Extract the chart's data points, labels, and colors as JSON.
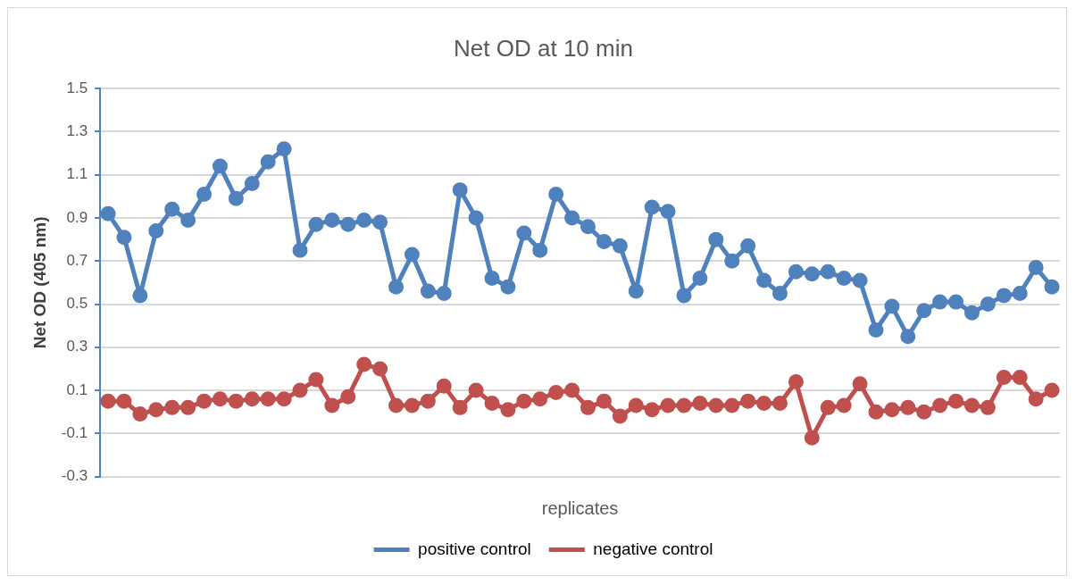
{
  "chart_data": {
    "type": "line",
    "title": "Net OD at 10 min",
    "xlabel": "replicates",
    "ylabel": "Net OD (405 nm)",
    "categories": [
      null,
      null,
      null,
      null,
      null,
      null,
      null,
      null,
      null,
      null,
      null,
      null,
      null,
      null,
      null,
      null,
      null,
      null,
      null,
      null,
      null,
      null,
      null,
      null,
      null,
      null,
      null,
      null,
      null,
      null,
      null,
      null,
      null,
      null,
      null,
      null,
      null,
      null,
      null,
      null,
      null,
      null,
      null,
      null,
      null,
      null,
      null,
      null,
      null,
      null,
      null,
      null,
      null,
      null,
      null,
      null,
      null,
      null,
      null,
      null
    ],
    "series": [
      {
        "name": "positive control",
        "color": "#4f81bd",
        "values": [
          0.92,
          0.81,
          0.54,
          0.84,
          0.94,
          0.89,
          1.01,
          1.14,
          0.99,
          1.06,
          1.16,
          1.22,
          0.75,
          0.87,
          0.89,
          0.87,
          0.89,
          0.88,
          0.58,
          0.73,
          0.56,
          0.55,
          1.03,
          0.9,
          0.62,
          0.58,
          0.83,
          0.75,
          1.01,
          0.9,
          0.86,
          0.79,
          0.77,
          0.56,
          0.95,
          0.93,
          0.54,
          0.62,
          0.8,
          0.7,
          0.77,
          0.61,
          0.55,
          0.65,
          0.64,
          0.65,
          0.62,
          0.61,
          0.38,
          0.49,
          0.35,
          0.47,
          0.51,
          0.51,
          0.46,
          0.5,
          0.54,
          0.55,
          0.67,
          0.58
        ]
      },
      {
        "name": "negative control",
        "color": "#c0504d",
        "values": [
          0.05,
          0.05,
          -0.01,
          0.01,
          0.02,
          0.02,
          0.05,
          0.06,
          0.05,
          0.06,
          0.06,
          0.06,
          0.1,
          0.15,
          0.03,
          0.07,
          0.22,
          0.2,
          0.03,
          0.03,
          0.05,
          0.12,
          0.02,
          0.1,
          0.04,
          0.01,
          0.05,
          0.06,
          0.09,
          0.1,
          0.02,
          0.05,
          -0.02,
          0.03,
          0.01,
          0.03,
          0.03,
          0.04,
          0.03,
          0.03,
          0.05,
          0.04,
          0.04,
          0.14,
          -0.12,
          0.02,
          0.03,
          0.13,
          0.0,
          0.01,
          0.02,
          0.0,
          0.03,
          0.05,
          0.03,
          0.02,
          0.16,
          0.16,
          0.06,
          0.1
        ]
      }
    ],
    "ylim": [
      -0.3,
      1.5
    ],
    "yticks": [
      -0.3,
      -0.1,
      0.1,
      0.3,
      0.5,
      0.7,
      0.9,
      1.1,
      1.3,
      1.5
    ],
    "grid": "y",
    "legend": "bottom",
    "marker": "circle",
    "line_style": "solid"
  }
}
